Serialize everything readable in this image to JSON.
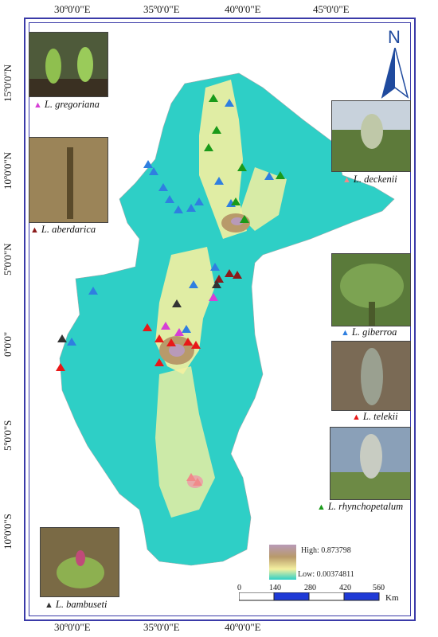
{
  "map": {
    "lon_labels": [
      "30º0'0\"E",
      "35º0'0\"E",
      "40º0'0\"E",
      "45º0'0\"E"
    ],
    "lat_labels": [
      "15º0'0\"N",
      "10º0'0\"N",
      "5º0'0\"N",
      "0º0'0\"",
      "5º0'0\"S",
      "10º0'0\"S"
    ],
    "north_label": "N",
    "colors": {
      "frame": "#3a3aa8",
      "low": "#2ecfc6",
      "mid": "#f4f0a0",
      "high": "#b89a6a",
      "highest": "#b89ab8"
    }
  },
  "legend": {
    "high_label": "High: 0.873798",
    "low_label": "Low:  0.00374811"
  },
  "scale": {
    "ticks": [
      "0",
      "140",
      "280",
      "420",
      "560"
    ],
    "unit": "Km"
  },
  "species": [
    {
      "name": "L. gregoriana",
      "color": "#d63fd6"
    },
    {
      "name": "L. aberdarica",
      "color": "#8b1a1a"
    },
    {
      "name": "L. deckenii",
      "color": "#f08a8a"
    },
    {
      "name": "L. giberroa",
      "color": "#2f7fe0"
    },
    {
      "name": "L. telekii",
      "color": "#e81818"
    },
    {
      "name": "L. rhynchopetalum",
      "color": "#1a9a1a"
    },
    {
      "name": "L. bambuseti",
      "color": "#333333"
    }
  ]
}
